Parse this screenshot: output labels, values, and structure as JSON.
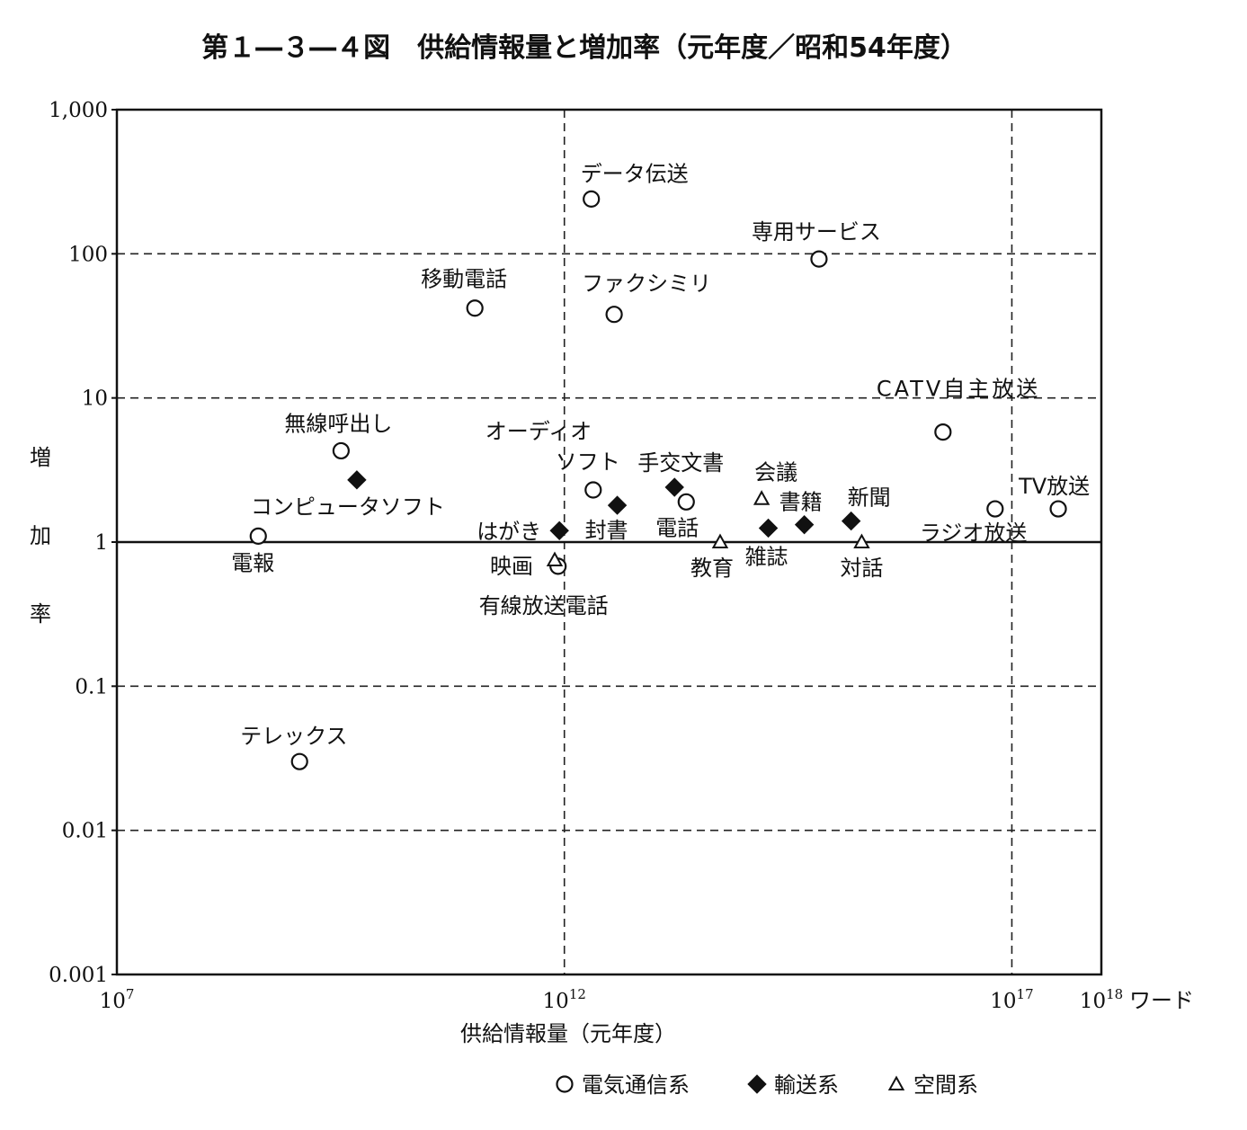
{
  "chart_data": {
    "type": "scatter",
    "title": "第１―３―４図　供給情報量と増加率（元年度／昭和54年度）",
    "xlabel": "供給情報量（元年度）",
    "ylabel": "増加率",
    "x_unit": "ワード",
    "x_scale": "log",
    "y_scale": "log",
    "xlim": [
      10000000.0,
      1e+18
    ],
    "ylim": [
      0.001,
      1000
    ],
    "grid": "dashed",
    "x_ticks": [
      {
        "value": 10000000.0,
        "base": "10",
        "exp": "7"
      },
      {
        "value": 1000000000000.0,
        "base": "10",
        "exp": "12"
      },
      {
        "value": 1e+17,
        "base": "10",
        "exp": "17"
      },
      {
        "value": 1e+18,
        "base": "10",
        "exp": "18"
      }
    ],
    "y_ticks": [
      {
        "value": 1000,
        "label": "1,000"
      },
      {
        "value": 100,
        "label": "100"
      },
      {
        "value": 10,
        "label": "10"
      },
      {
        "value": 1,
        "label": "1"
      },
      {
        "value": 0.1,
        "label": "0.1"
      },
      {
        "value": 0.01,
        "label": "0.01"
      },
      {
        "value": 0.001,
        "label": "0.001"
      }
    ],
    "series": [
      {
        "name": "電気通信系",
        "marker": "circle",
        "points": [
          {
            "label": "データ伝送",
            "x": 2000000000000.0,
            "y": 240
          },
          {
            "label": "専用サービス",
            "x": 700000000000000.0,
            "y": 92
          },
          {
            "label": "移動電話",
            "x": 100000000000.0,
            "y": 42
          },
          {
            "label": "ファクシミリ",
            "x": 3600000000000.0,
            "y": 38
          },
          {
            "label": "CATV自主放送",
            "x": 1.7e+16,
            "y": 5.8
          },
          {
            "label": "無線呼出し",
            "x": 3200000000.0,
            "y": 4.3
          },
          {
            "label": "オーディオソフト",
            "x": 2100000000000.0,
            "y": 2.3
          },
          {
            "label": "電話",
            "x": 23000000000000.0,
            "y": 1.9
          },
          {
            "label": "ラジオ放送",
            "x": 6.5e+16,
            "y": 1.7
          },
          {
            "label": "TV放送",
            "x": 3.3e+17,
            "y": 1.7
          },
          {
            "label": "電報",
            "x": 380000000.0,
            "y": 1.1
          },
          {
            "label": "有線放送電話",
            "x": 850000000000.0,
            "y": 0.68
          },
          {
            "label": "テレックス",
            "x": 1100000000.0,
            "y": 0.03
          }
        ]
      },
      {
        "name": "輸送系",
        "marker": "diamond",
        "points": [
          {
            "label": "コンピュータソフト",
            "x": 4800000000.0,
            "y": 2.7
          },
          {
            "label": "手交文書",
            "x": 17000000000000.0,
            "y": 2.4
          },
          {
            "label": "封書",
            "x": 3900000000000.0,
            "y": 1.8
          },
          {
            "label": "はがき",
            "x": 880000000000.0,
            "y": 1.2
          },
          {
            "label": "雑誌",
            "x": 190000000000000.0,
            "y": 1.25
          },
          {
            "label": "書籍",
            "x": 480000000000000.0,
            "y": 1.32
          },
          {
            "label": "新聞",
            "x": 1600000000000000.0,
            "y": 1.4
          }
        ]
      },
      {
        "name": "空間系",
        "marker": "triangle",
        "points": [
          {
            "label": "会議",
            "x": 160000000000000.0,
            "y": 2.0
          },
          {
            "label": "教育",
            "x": 55000000000000.0,
            "y": 1.0
          },
          {
            "label": "対話",
            "x": 2100000000000000.0,
            "y": 1.0
          },
          {
            "label": "映画",
            "x": 780000000000.0,
            "y": 0.75
          }
        ]
      }
    ],
    "legend": {
      "position": "bottom-right",
      "items": [
        {
          "marker": "circle",
          "label": "電気通信系"
        },
        {
          "marker": "diamond",
          "label": "輸送系"
        },
        {
          "marker": "triangle",
          "label": "空間系"
        }
      ]
    }
  }
}
